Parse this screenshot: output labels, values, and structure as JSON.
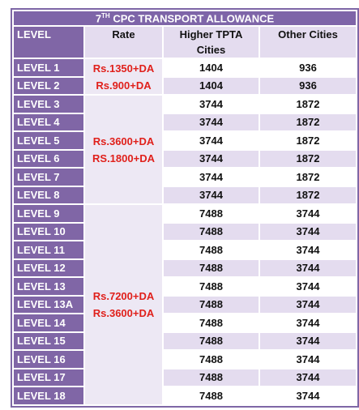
{
  "title": {
    "number": "7",
    "sup": "TH",
    "text": "CPC TRANSPORT ALLOWANCE"
  },
  "headers": [
    "LEVEL",
    "Rate",
    "Higher TPTA Cities",
    "Other Cities"
  ],
  "groups": [
    {
      "rate": [
        "Rs.1350+DA",
        "Rs.900+DA"
      ],
      "rows": [
        [
          "LEVEL 1",
          "1404",
          "936"
        ],
        [
          "LEVEL 2",
          "1404",
          "936"
        ]
      ]
    },
    {
      "rate": [
        "Rs.3600+DA",
        "RS.1800+DA"
      ],
      "rows": [
        [
          "LEVEL 3",
          "3744",
          "1872"
        ],
        [
          "LEVEL 4",
          "3744",
          "1872"
        ],
        [
          "LEVEL 5",
          "3744",
          "1872"
        ],
        [
          "LEVEL 6",
          "3744",
          "1872"
        ],
        [
          "LEVEL 7",
          "3744",
          "1872"
        ],
        [
          "LEVEL 8",
          "3744",
          "1872"
        ]
      ]
    },
    {
      "rate": [
        "Rs.7200+DA",
        "Rs.3600+DA"
      ],
      "rows": [
        [
          "LEVEL 9",
          "7488",
          "3744"
        ],
        [
          "LEVEL 10",
          "7488",
          "3744"
        ],
        [
          "LEVEL 11",
          "7488",
          "3744"
        ],
        [
          "LEVEL 12",
          "7488",
          "3744"
        ],
        [
          "LEVEL 13",
          "7488",
          "3744"
        ],
        [
          "LEVEL 13A",
          "7488",
          "3744"
        ],
        [
          "LEVEL 14",
          "7488",
          "3744"
        ],
        [
          "LEVEL 15",
          "7488",
          "3744"
        ],
        [
          "LEVEL 16",
          "7488",
          "3744"
        ],
        [
          "LEVEL 17",
          "7488",
          "3744"
        ],
        [
          "LEVEL 18",
          "7488",
          "3744"
        ]
      ]
    }
  ]
}
